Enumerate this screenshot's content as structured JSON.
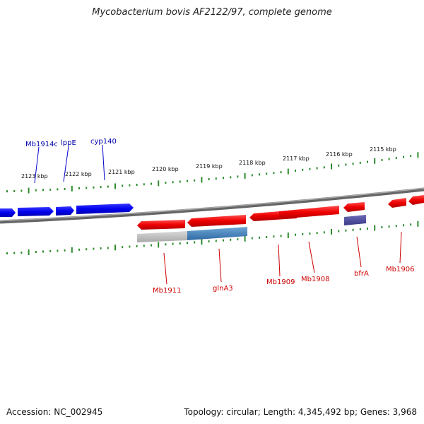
{
  "title": "Mycobacterium bovis AF2122/97, complete genome",
  "footer": {
    "accession_label": "Accession:",
    "accession": "NC_002945",
    "topology_label": "Topology:",
    "topology": "circular",
    "length_label": "Length:",
    "length": "4,345,492 bp",
    "genes_label": "Genes:",
    "genes": "3,968"
  },
  "scale_ticks": [
    "2123 kbp",
    "2122 kbp",
    "2121 kbp",
    "2120 kbp",
    "2119 kbp",
    "2118 kbp",
    "2117 kbp",
    "2116 kbp",
    "2115 kbp"
  ],
  "forward_genes": [
    "Mb1914c",
    "lppE",
    "cyp140"
  ],
  "reverse_genes": [
    "Mb1911",
    "glnA3",
    "Mb1909",
    "Mb1908",
    "bfrA",
    "Mb1906"
  ],
  "colors": {
    "forward_feature": "#0000ff",
    "forward_label": "#0000aa",
    "reverse_feature": "#ff0000",
    "reverse_label": "#cc0000",
    "tick": "#2e8b2e",
    "backbone": "#777777",
    "glnA3_segment": "#4a87c0",
    "gray_segment": "#b8b8b8",
    "bfrA_feature": "#4a4a9c"
  }
}
